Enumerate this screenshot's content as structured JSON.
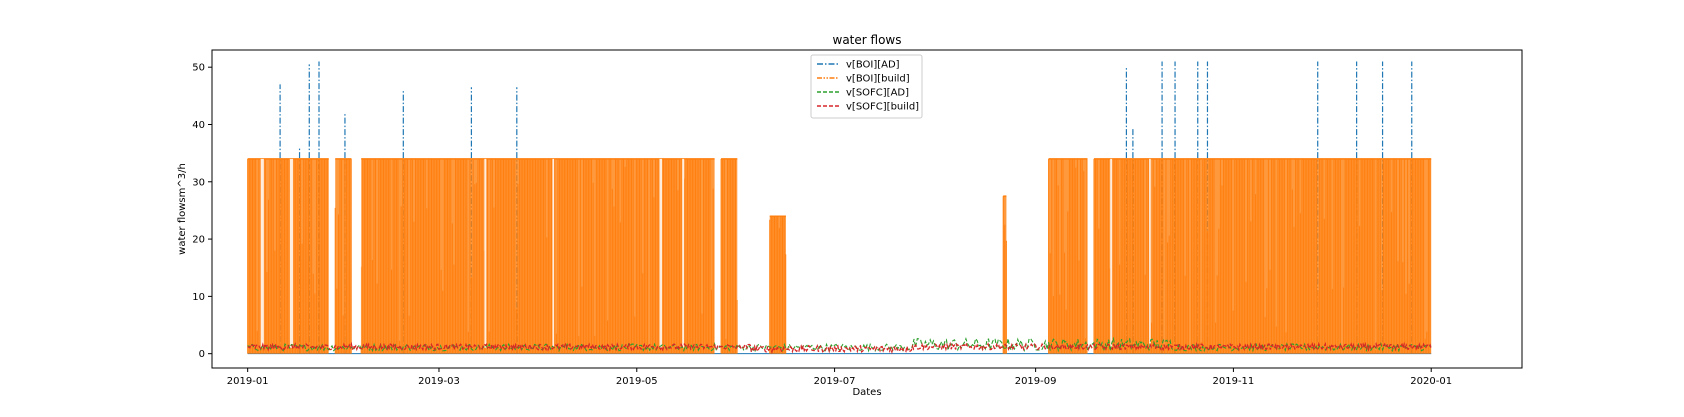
{
  "chart_data": {
    "type": "line",
    "title": "water flows",
    "xlabel": "Dates",
    "ylabel": "water flowsm^3/h",
    "xlim": [
      "2018-12-21",
      "2020-01-29"
    ],
    "ylim": [
      -2.5,
      53
    ],
    "x_ticks": [
      "2019-01",
      "2019-03",
      "2019-05",
      "2019-07",
      "2019-09",
      "2019-11",
      "2020-01"
    ],
    "y_ticks": [
      0,
      10,
      20,
      30,
      40,
      50
    ],
    "grid": false,
    "legend_position": "top-center",
    "series": [
      {
        "name": "v[BOI][AD]",
        "color": "#1f77b4",
        "style": "dashdot",
        "base_value": 0,
        "spikes": [
          {
            "date": "2019-01-11",
            "value": 47
          },
          {
            "date": "2019-01-17",
            "value": 36
          },
          {
            "date": "2019-01-20",
            "value": 50.5
          },
          {
            "date": "2019-01-23",
            "value": 51
          },
          {
            "date": "2019-01-31",
            "value": 42
          },
          {
            "date": "2019-02-18",
            "value": 46
          },
          {
            "date": "2019-03-11",
            "value": 46.5
          },
          {
            "date": "2019-03-25",
            "value": 46.5
          },
          {
            "date": "2019-09-29",
            "value": 50
          },
          {
            "date": "2019-10-01",
            "value": 39.5
          },
          {
            "date": "2019-10-10",
            "value": 51
          },
          {
            "date": "2019-10-14",
            "value": 51
          },
          {
            "date": "2019-10-21",
            "value": 51
          },
          {
            "date": "2019-10-24",
            "value": 51
          },
          {
            "date": "2019-11-27",
            "value": 51
          },
          {
            "date": "2019-12-09",
            "value": 51
          },
          {
            "date": "2019-12-17",
            "value": 51
          },
          {
            "date": "2019-12-26",
            "value": 51
          }
        ]
      },
      {
        "name": "v[BOI][build]",
        "color": "#ff7f0e",
        "style": "dashdotdot",
        "max_value": 34,
        "active_periods": [
          {
            "start": "2019-01-01",
            "end": "2019-01-26",
            "max": 34
          },
          {
            "start": "2019-01-28",
            "end": "2019-02-02",
            "max": 34
          },
          {
            "start": "2019-02-05",
            "end": "2019-05-25",
            "max": 34
          },
          {
            "start": "2019-05-27",
            "end": "2019-06-01",
            "max": 34
          },
          {
            "start": "2019-06-11",
            "end": "2019-06-16",
            "max": 24
          },
          {
            "start": "2019-08-22",
            "end": "2019-08-23",
            "max": 27.5
          },
          {
            "start": "2019-09-05",
            "end": "2019-09-17",
            "max": 34
          },
          {
            "start": "2019-09-19",
            "end": "2020-01-01",
            "max": 34
          }
        ]
      },
      {
        "name": "v[SOFC][AD]",
        "color": "#2ca02c",
        "style": "dashed",
        "base_value": 0.5,
        "max_value": 2.7
      },
      {
        "name": "v[SOFC][build]",
        "color": "#d62728",
        "style": "dashed",
        "base_value": 1.0,
        "max_value": 1.7
      }
    ]
  }
}
